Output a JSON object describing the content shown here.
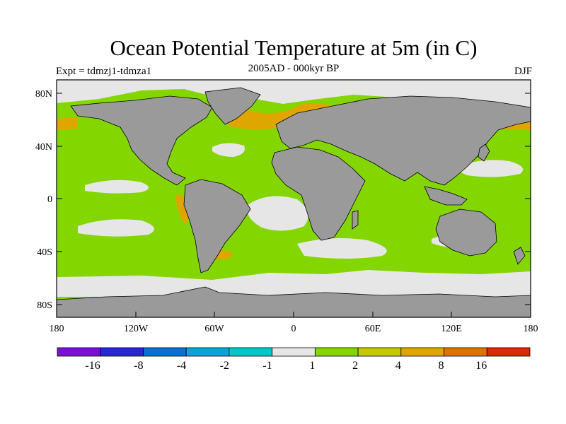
{
  "title": "Ocean Potential Temperature at 5m (in C)",
  "subtitle": "2005AD - 000kyr BP",
  "expt_label": "Expt = tdmzj1-tdmza1",
  "season": "DJF",
  "y_ticks": [
    "80N",
    "40N",
    "0",
    "40S",
    "80S"
  ],
  "x_ticks": [
    "180",
    "120W",
    "60W",
    "0",
    "60E",
    "120E",
    "180"
  ],
  "colorbar": {
    "colors": [
      "#7a10d8",
      "#2a26d4",
      "#0a6fd8",
      "#08a4d8",
      "#00c8c8",
      "#e6e6e6",
      "#84d600",
      "#c6c800",
      "#dfa600",
      "#e07000",
      "#da2a00"
    ],
    "labels": [
      "-16",
      "-8",
      "-4",
      "-2",
      "-1",
      "1",
      "2",
      "4",
      "8",
      "16"
    ]
  },
  "map_colors": {
    "ocean_main": "#84d600",
    "near_zero": "#e6e6e6",
    "warm": "#dfa600",
    "land": "#9a9a9a"
  }
}
